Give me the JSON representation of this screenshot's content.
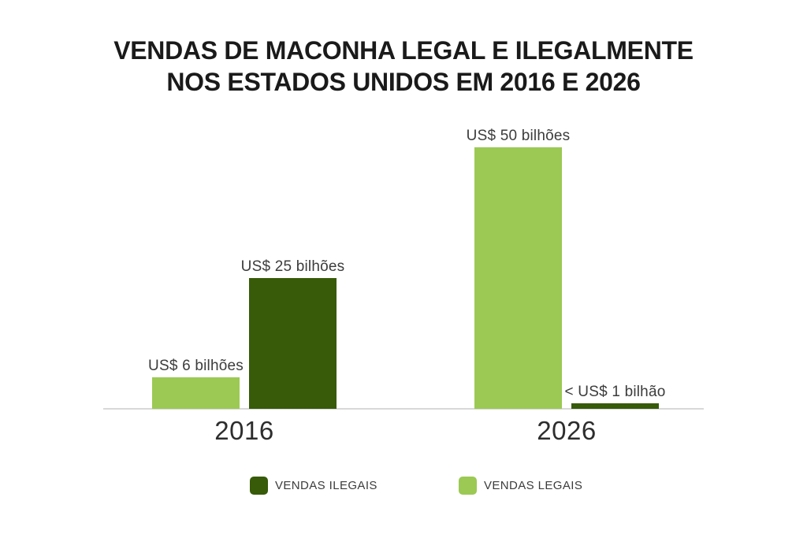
{
  "title": {
    "line1": "VENDAS DE MACONHA LEGAL E ILEGALMENTE",
    "line2": "NOS ESTADOS UNIDOS EM 2016 E 2026"
  },
  "chart_data": {
    "type": "bar",
    "title": "VENDAS DE MACONHA LEGAL E ILEGALMENTE NOS ESTADOS UNIDOS EM 2016 E 2026",
    "categories": [
      "2016",
      "2026"
    ],
    "series": [
      {
        "name": "VENDAS LEGAIS",
        "color": "#9bc953",
        "values": [
          6,
          50
        ],
        "value_labels": [
          "US$ 6 bilhões",
          "US$ 50 bilhões"
        ]
      },
      {
        "name": "VENDAS ILEGAIS",
        "color": "#375b08",
        "values": [
          25,
          1
        ],
        "value_labels": [
          "US$ 25 bilhões",
          "< US$ 1 bilhão"
        ]
      }
    ],
    "unit": "US$ bilhões",
    "ylim": [
      0,
      50
    ],
    "grid": false,
    "legend_position": "bottom",
    "legend": [
      {
        "label": "VENDAS ILEGAIS",
        "color": "#375b08"
      },
      {
        "label": "VENDAS LEGAIS",
        "color": "#9bc953"
      }
    ],
    "axis_line_color": "#d8d8d8"
  }
}
